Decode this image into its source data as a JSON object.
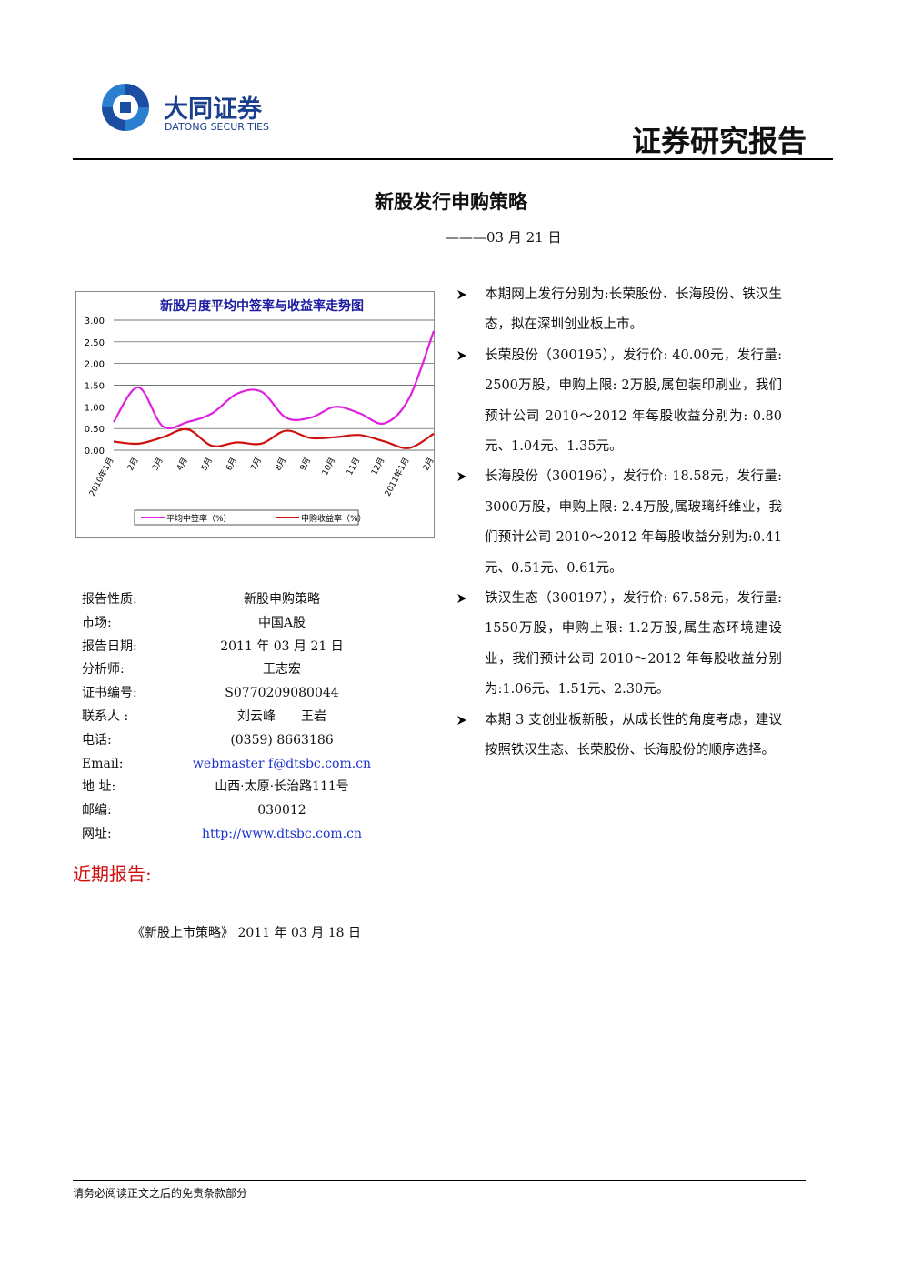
{
  "header": {
    "company": "大同证券",
    "company_en": "DATONG SECURITIES",
    "report_type": "证券研究报告"
  },
  "title": "新股发行申购策略",
  "subtitle": "———03 月 21 日",
  "chart_data": {
    "type": "line",
    "title": "新股月度平均中签率与收益率走势图",
    "categories": [
      "2010年1月",
      "2月",
      "3月",
      "4月",
      "5月",
      "6月",
      "7月",
      "8月",
      "9月",
      "10月",
      "11月",
      "12月",
      "2011年1月",
      "2月"
    ],
    "series": [
      {
        "name": "平均中签率（%）",
        "color": "#e020e0",
        "values": [
          0.65,
          1.45,
          0.55,
          0.65,
          0.85,
          1.3,
          1.35,
          0.75,
          0.75,
          1.0,
          0.85,
          0.62,
          1.2,
          2.75
        ]
      },
      {
        "name": "申购收益率（%）",
        "color": "#d01010",
        "values": [
          0.2,
          0.15,
          0.3,
          0.48,
          0.1,
          0.18,
          0.15,
          0.45,
          0.28,
          0.3,
          0.35,
          0.2,
          0.05,
          0.38
        ]
      }
    ],
    "ylim": [
      0,
      3
    ],
    "yticks": [
      {
        "value": 0,
        "label": "0.00"
      },
      {
        "value": 0.5,
        "label": "0.50"
      },
      {
        "value": 1,
        "label": "1.00"
      },
      {
        "value": 1.5,
        "label": "1.50"
      },
      {
        "value": 2,
        "label": "2.00"
      },
      {
        "value": 2.5,
        "label": "2.50"
      },
      {
        "value": 3,
        "label": "3.00"
      }
    ],
    "grid": true,
    "legend": "bottom"
  },
  "info": {
    "rows": [
      [
        "报告性质:",
        "新股申购策略"
      ],
      [
        "市场:",
        "中国A股"
      ],
      [
        "报告日期:",
        "2011 年 03 月 21 日"
      ],
      [
        "分析师:",
        "王志宏"
      ],
      [
        "证书编号:",
        "S0770209080044"
      ],
      [
        "联系人 :",
        "刘云峰　　王岩"
      ],
      [
        "电话:",
        "(0359) 8663186"
      ],
      [
        "Email:",
        "webmaster f@dtsbc.com.cn"
      ],
      [
        "地 址:",
        "山西·太原·长治路111号"
      ],
      [
        "邮编:",
        "030012"
      ],
      [
        "网址:",
        "http://www.dtsbc.com.cn"
      ]
    ]
  },
  "recent": {
    "heading": "近期报告:",
    "items": [
      "《新股上市策略》 2011 年 03 月 18 日"
    ]
  },
  "bullets": [
    "本期网上发行分别为:长荣股份、长海股份、铁汉生态，拟在深圳创业板上市。",
    "长荣股份（300195），发行价: 40.00元，发行量: 2500万股，申购上限: 2万股,属包装印刷业，我们预计公司 2010～2012 年每股收益分别为: 0.80元、1.04元、1.35元。",
    "长海股份（300196），发行价: 18.58元，发行量: 3000万股，申购上限: 2.4万股,属玻璃纤维业，我们预计公司 2010～2012 年每股收益分别为:0.41元、0.51元、0.61元。",
    "铁汉生态（300197），发行价: 67.58元，发行量: 1550万股，申购上限: 1.2万股,属生态环境建设业，我们预计公司 2010～2012 年每股收益分别为:1.06元、1.51元、2.30元。",
    "本期 3 支创业板新股，从成长性的角度考虑，建议按照铁汉生态、长荣股份、长海股份的顺序选择。"
  ],
  "footer": "请务必阅读正文之后的免责条款部分"
}
